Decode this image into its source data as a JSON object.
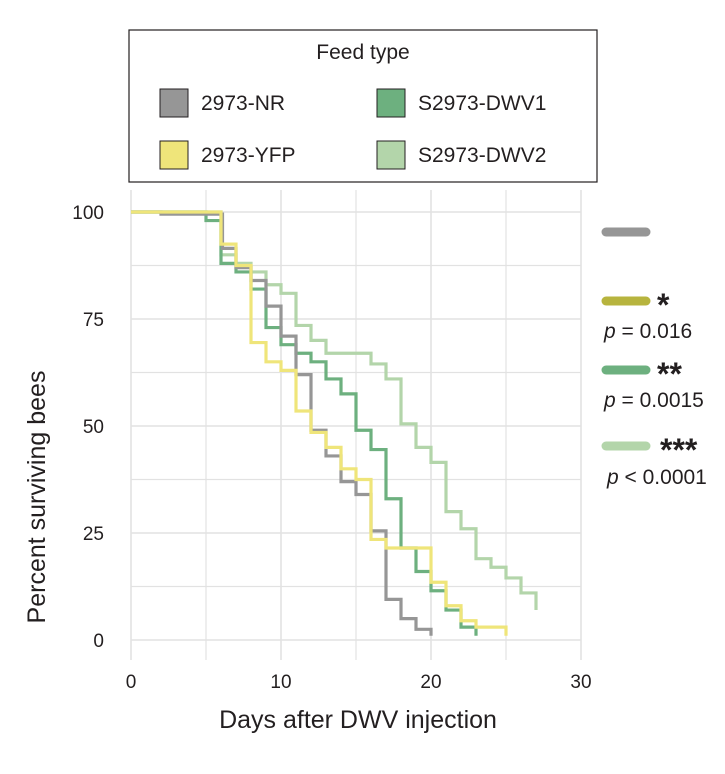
{
  "colors": {
    "2973-NR": "#969696",
    "2973-YFP": "#efe57a",
    "S2973-DWV1": "#6db07f",
    "S2973-DWV2": "#b3d5aa",
    "sig_star1": "#b7b43e",
    "grid": "#e2e2e2",
    "text": "#231f20"
  },
  "legend": {
    "title": "Feed type",
    "items": [
      {
        "label": "2973-NR",
        "color": "#969696"
      },
      {
        "label": "S2973-DWV1",
        "color": "#6db07f"
      },
      {
        "label": "2973-YFP",
        "color": "#efe57a"
      },
      {
        "label": "S2973-DWV2",
        "color": "#b3d5aa"
      }
    ]
  },
  "significance": [
    {
      "series": "2973-NR",
      "color": "#969696",
      "stars": "",
      "p": ""
    },
    {
      "series": "2973-YFP",
      "color": "#b7b43e",
      "stars": "*",
      "p_symbol": "p",
      "p_text": " = 0.016"
    },
    {
      "series": "S2973-DWV1",
      "color": "#6db07f",
      "stars": "**",
      "p_symbol": "p",
      "p_text": " = 0.0015"
    },
    {
      "series": "S2973-DWV2",
      "color": "#b3d5aa",
      "stars": "***",
      "p_symbol": "p",
      "p_text": " < 0.0001"
    }
  ],
  "chart_data": {
    "type": "line",
    "step": true,
    "title": "",
    "xlabel": "Days after DWV injection",
    "ylabel": "Percent surviving bees",
    "xlim": [
      0,
      30
    ],
    "ylim": [
      0,
      100
    ],
    "xticks": [
      0,
      10,
      20,
      30
    ],
    "yticks": [
      0,
      25,
      50,
      75,
      100
    ],
    "grid": true,
    "series": [
      {
        "name": "2973-NR",
        "x": [
          0,
          2,
          6,
          6.1,
          7,
          8,
          9,
          10,
          11,
          12,
          13,
          14,
          15,
          16,
          17,
          18,
          19,
          20
        ],
        "y": [
          100,
          99.5,
          99.5,
          91.5,
          87,
          84,
          78,
          71,
          62,
          49,
          43,
          37,
          34,
          25.5,
          9.5,
          5,
          2.5,
          1
        ]
      },
      {
        "name": "2973-YFP",
        "x": [
          0,
          6,
          7,
          8,
          9,
          10,
          11,
          12,
          13,
          14,
          15,
          16,
          17,
          18,
          20,
          21,
          22,
          23,
          25
        ],
        "y": [
          100,
          92.5,
          87.5,
          69.5,
          65,
          63,
          53.5,
          48.5,
          45,
          40,
          37.5,
          23.5,
          21.5,
          21.5,
          13.5,
          8,
          4.5,
          3,
          1
        ]
      },
      {
        "name": "S2973-DWV1",
        "x": [
          0,
          5,
          6,
          7,
          8,
          9,
          10,
          11,
          12,
          13,
          14,
          15,
          16,
          17,
          18,
          19,
          20,
          21,
          22,
          23
        ],
        "y": [
          100,
          98,
          88,
          86,
          82,
          73,
          69,
          67,
          65,
          61,
          57.5,
          49,
          44.5,
          33,
          21.5,
          16,
          11.5,
          7,
          3,
          1
        ]
      },
      {
        "name": "S2973-DWV2",
        "x": [
          0,
          6,
          7,
          8,
          9,
          10,
          11,
          12,
          13,
          14,
          15,
          16,
          17,
          18,
          19,
          20,
          21,
          22,
          23,
          24,
          25,
          26,
          27
        ],
        "y": [
          100,
          90,
          88,
          86,
          83,
          81,
          73.5,
          70,
          67,
          67,
          67,
          64.5,
          61,
          50.5,
          45,
          41.5,
          30,
          26,
          19,
          17,
          14.5,
          11,
          7
        ]
      }
    ]
  }
}
